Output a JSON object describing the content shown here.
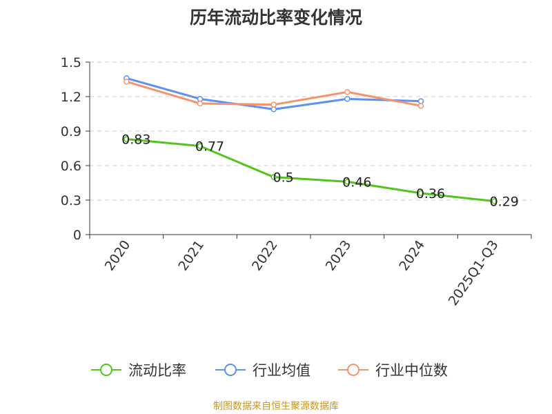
{
  "page": {
    "source": "制图数据来自恒生聚源数据库"
  },
  "chart_data": {
    "type": "line",
    "title": "历年流动比率变化情况",
    "xlabel": "",
    "ylabel": "",
    "categories": [
      "2020",
      "2021",
      "2022",
      "2023",
      "2024",
      "2025Q1-Q3"
    ],
    "ylim": [
      0,
      1.5
    ],
    "yticks": [
      0,
      0.3,
      0.6,
      0.9,
      1.2,
      1.5
    ],
    "ytick_labels": [
      "0",
      "0.3",
      "0.6",
      "0.9",
      "1.2",
      "1.5"
    ],
    "grid": true,
    "legend_position": "bottom",
    "series": [
      {
        "name": "流动比率",
        "color": "#52c41a",
        "values": [
          0.83,
          0.77,
          0.5,
          0.46,
          0.36,
          0.29
        ],
        "labels": [
          "0.83",
          "0.77",
          "0.5",
          "0.46",
          "0.36",
          "0.29"
        ],
        "show_labels": true
      },
      {
        "name": "行业均值",
        "color": "#5b8ff9",
        "values": [
          1.36,
          1.18,
          1.09,
          1.18,
          1.16,
          null
        ],
        "show_labels": false
      },
      {
        "name": "行业中位数",
        "color": "#f6936a",
        "values": [
          1.33,
          1.14,
          1.13,
          1.24,
          1.12,
          null
        ],
        "show_labels": false
      }
    ]
  }
}
